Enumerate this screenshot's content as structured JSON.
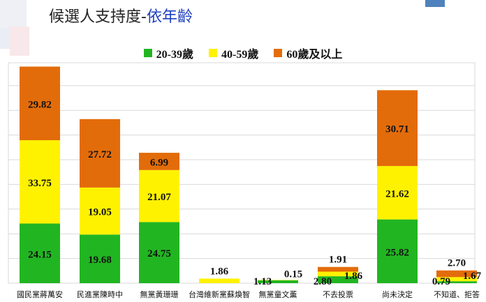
{
  "title": {
    "main": "候選人支持度-",
    "suffix": "依年齡"
  },
  "colors": {
    "g20_39": "#22b522",
    "g40_59": "#fff200",
    "g60": "#e36c0a"
  },
  "chart_data": {
    "type": "bar",
    "stacked": true,
    "categories": [
      "國民黨蔣萬安",
      "民進黨陳時中",
      "無黨黃珊珊",
      "台灣維新黨蘇煥智",
      "無黨童文薰",
      "不去投票",
      "尚未決定",
      "不知道、拒答"
    ],
    "series": [
      {
        "name": "20-39歲",
        "values": [
          24.15,
          19.68,
          24.75,
          null,
          1.13,
          2.8,
          25.82,
          0.79
        ]
      },
      {
        "name": "40-59歲",
        "values": [
          33.75,
          19.05,
          21.07,
          1.86,
          0.15,
          1.86,
          21.62,
          1.67
        ]
      },
      {
        "name": "60歲及以上",
        "values": [
          29.82,
          27.72,
          6.99,
          null,
          null,
          1.91,
          30.71,
          2.7
        ]
      }
    ],
    "ylim": [
      0,
      100
    ],
    "grid": true,
    "legend_position": "top-center"
  }
}
